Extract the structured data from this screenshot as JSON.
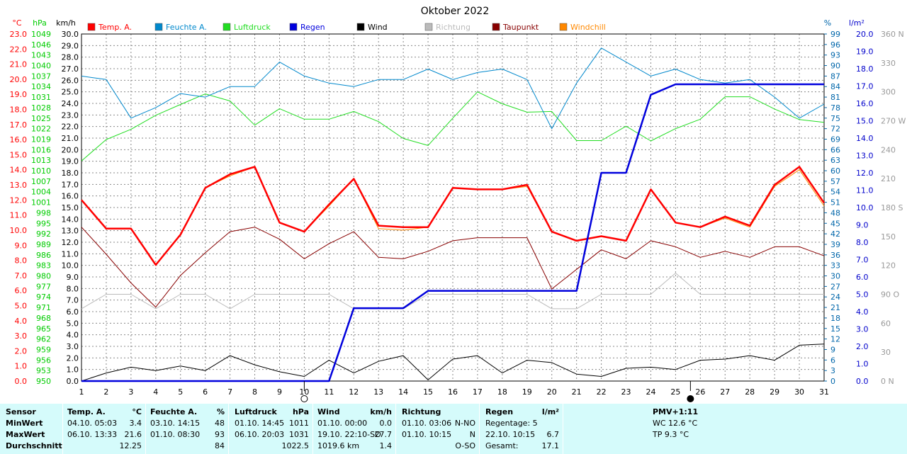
{
  "chart_data": {
    "type": "line",
    "title": "Oktober 2022",
    "x": [
      1,
      2,
      3,
      4,
      5,
      6,
      7,
      8,
      9,
      10,
      11,
      12,
      13,
      14,
      15,
      16,
      17,
      18,
      19,
      20,
      21,
      22,
      23,
      24,
      25,
      26,
      27,
      28,
      29,
      30,
      31
    ],
    "axes": {
      "temp": {
        "unit": "°C",
        "ticks": [
          "0.0",
          "1.0",
          "2.0",
          "3.0",
          "4.0",
          "5.0",
          "6.0",
          "7.0",
          "8.0",
          "9.0",
          "10.0",
          "11.0",
          "12.0",
          "13.0",
          "14.0",
          "15.0",
          "16.0",
          "17.0",
          "18.0",
          "19.0",
          "20.0",
          "21.0",
          "22.0",
          "23.0"
        ],
        "color": "#ff0000"
      },
      "pressure": {
        "unit": "hPa",
        "ticks": [
          "950",
          "953",
          "956",
          "959",
          "962",
          "965",
          "968",
          "971",
          "974",
          "977",
          "980",
          "983",
          "986",
          "989",
          "992",
          "995",
          "998",
          "1001",
          "1004",
          "1007",
          "1010",
          "1013",
          "1016",
          "1019",
          "1022",
          "1025",
          "1028",
          "1031",
          "1034",
          "1037",
          "1040",
          "1043",
          "1046",
          "1049"
        ],
        "color": "#00cc00"
      },
      "wind": {
        "unit": "km/h",
        "ticks": [
          "0.0",
          "1.0",
          "2.0",
          "3.0",
          "4.0",
          "5.0",
          "6.0",
          "7.0",
          "8.0",
          "9.0",
          "10.0",
          "11.0",
          "12.0",
          "13.0",
          "14.0",
          "15.0",
          "16.0",
          "17.0",
          "18.0",
          "19.0",
          "20.0",
          "21.0",
          "22.0",
          "23.0",
          "24.0",
          "25.0",
          "26.0",
          "27.0",
          "28.0",
          "29.0",
          "30.0"
        ],
        "color": "#000000"
      },
      "humidity": {
        "unit": "%",
        "ticks": [
          "0",
          "3",
          "6",
          "9",
          "12",
          "15",
          "18",
          "21",
          "24",
          "27",
          "30",
          "33",
          "36",
          "39",
          "42",
          "45",
          "48",
          "51",
          "54",
          "57",
          "60",
          "63",
          "66",
          "69",
          "72",
          "75",
          "78",
          "81",
          "84",
          "87",
          "90",
          "93",
          "96",
          "99"
        ],
        "color": "#0066aa"
      },
      "rain": {
        "unit": "l/m²",
        "ticks": [
          "0.0",
          "1.0",
          "2.0",
          "3.0",
          "4.0",
          "5.0",
          "6.0",
          "7.0",
          "8.0",
          "9.0",
          "10.0",
          "11.0",
          "12.0",
          "13.0",
          "14.0",
          "15.0",
          "16.0",
          "17.0",
          "18.0",
          "19.0",
          "20.0"
        ],
        "color": "#0000cc"
      },
      "direction": {
        "ticks": [
          "0 N",
          "30",
          "60",
          "90 O",
          "120",
          "150",
          "180 S",
          "210",
          "240",
          "270 W",
          "300",
          "330",
          "360 N"
        ],
        "color": "#999999"
      }
    },
    "series": [
      {
        "name": "Temp. A.",
        "axis": "temp",
        "color": "#ff0000",
        "values": [
          12.0,
          10.1,
          10.1,
          7.7,
          9.7,
          12.8,
          13.7,
          14.2,
          10.5,
          9.9,
          11.7,
          13.4,
          10.3,
          10.2,
          10.2,
          12.8,
          12.7,
          12.7,
          13.0,
          9.9,
          9.3,
          9.6,
          9.3,
          12.7,
          10.5,
          10.2,
          10.9,
          10.3,
          13.0,
          14.2,
          11.8
        ]
      },
      {
        "name": "Feuchte A.",
        "axis": "humidity",
        "color": "#0088cc",
        "values": [
          87,
          86,
          75,
          78,
          82,
          81,
          84,
          84,
          91,
          87,
          85,
          84,
          86,
          86,
          89,
          86,
          88,
          89,
          86,
          72,
          85,
          95,
          91,
          87,
          89,
          86,
          85,
          86,
          81,
          75,
          79
        ]
      },
      {
        "name": "Luftdruck",
        "axis": "pressure",
        "color": "#22dd22",
        "values": [
          1012.8,
          1018.9,
          1021.8,
          1025.8,
          1028.9,
          1031.9,
          1029.9,
          1023.0,
          1027.7,
          1024.7,
          1024.7,
          1026.9,
          1024.0,
          1019.2,
          1017.2,
          1025.0,
          1032.5,
          1029.1,
          1026.7,
          1026.9,
          1018.6,
          1018.6,
          1022.7,
          1018.5,
          1022.0,
          1024.7,
          1031.1,
          1031.1,
          1027.6,
          1024.6,
          1023.8
        ]
      },
      {
        "name": "Regen",
        "axis": "rain",
        "color": "#0000dd",
        "values": [
          0.0,
          0.0,
          0.0,
          0.0,
          0.0,
          0.0,
          0.0,
          0.0,
          0.0,
          0.0,
          0.0,
          4.2,
          4.2,
          4.2,
          5.2,
          5.2,
          5.2,
          5.2,
          5.2,
          5.2,
          5.2,
          12.0,
          12.0,
          16.5,
          17.1,
          17.1,
          17.1,
          17.1,
          17.1,
          17.1,
          17.1
        ]
      },
      {
        "name": "Wind",
        "axis": "wind",
        "color": "#000000",
        "values": [
          0.0,
          0.7,
          1.2,
          0.9,
          1.3,
          0.9,
          2.2,
          1.4,
          0.8,
          0.4,
          1.8,
          0.7,
          1.7,
          2.2,
          0.1,
          1.9,
          2.2,
          0.7,
          1.8,
          1.6,
          0.6,
          0.4,
          1.1,
          1.2,
          1.0,
          1.8,
          1.9,
          2.2,
          1.8,
          3.1,
          3.2
        ]
      },
      {
        "name": "Richtung",
        "axis": "direction",
        "color": "#bbbbbb",
        "values": [
          75,
          90,
          90,
          75,
          90,
          90,
          75,
          90,
          90,
          90,
          90,
          75,
          75,
          75,
          90,
          90,
          90,
          90,
          90,
          75,
          75,
          90,
          90,
          90,
          112,
          90,
          90,
          90,
          90,
          90,
          90
        ]
      },
      {
        "name": "Taupunkt",
        "axis": "temp",
        "color": "#880000",
        "values": [
          10.2,
          8.4,
          6.5,
          4.9,
          7.0,
          8.5,
          9.9,
          10.2,
          9.4,
          8.1,
          9.1,
          9.9,
          8.2,
          8.1,
          8.6,
          9.3,
          9.5,
          9.5,
          9.5,
          6.1,
          7.4,
          8.7,
          8.1,
          9.3,
          8.9,
          8.2,
          8.6,
          8.2,
          8.9,
          8.9,
          8.3
        ]
      },
      {
        "name": "Windchill",
        "axis": "temp",
        "color": "#ff8800",
        "values": [
          12.0,
          10.1,
          10.1,
          7.7,
          9.7,
          12.8,
          13.6,
          14.2,
          10.5,
          9.9,
          11.6,
          13.4,
          10.1,
          10.0,
          10.2,
          12.8,
          12.7,
          12.7,
          12.9,
          9.9,
          9.3,
          9.6,
          9.3,
          12.7,
          10.5,
          10.2,
          10.8,
          10.2,
          12.9,
          14.0,
          11.6
        ]
      }
    ],
    "moon_markers": [
      {
        "day": 10,
        "phase": "first-quarter"
      },
      {
        "day": 25.6,
        "phase": "new-moon"
      }
    ],
    "grid": true,
    "legend_position": "top"
  },
  "stats": {
    "sensor": {
      "title": "Sensor",
      "min": "MinWert",
      "max": "MaxWert",
      "avg": "Durchschnitt"
    },
    "temp": {
      "title": "Temp. A.",
      "unit": "°C",
      "min_dt": "04.10.  05:03",
      "min_v": "3.4",
      "max_dt": "06.10.  13:33",
      "max_v": "21.6",
      "avg_v": "12.25"
    },
    "hum": {
      "title": "Feuchte A.",
      "unit": "%",
      "min_dt": "03.10.  14:15",
      "min_v": "48",
      "max_dt": "01.10.  08:30",
      "max_v": "93",
      "avg_v": "84"
    },
    "press": {
      "title": "Luftdruck",
      "unit": "hPa",
      "min_dt": "01.10.  14:45",
      "min_v": "1011",
      "max_dt": "06.10.  20:03",
      "max_v": "1031",
      "avg_v": "1022.5"
    },
    "wind": {
      "title": "Wind",
      "unit": "km/h",
      "min_dt": "01.10.  00:00",
      "min_v": "0.0",
      "max_dt": "19.10.  22:10-SO",
      "max_v": "27.7",
      "avg_dt": "1019.6 km",
      "avg_v": "1.4"
    },
    "dir": {
      "title": "Richtung",
      "min_dt": "01.10.  03:06",
      "min_v": "N-NO",
      "max_dt": "01.10.  10:15",
      "max_v": "N",
      "avg_v": "O-SO"
    },
    "rain": {
      "title": "Regen",
      "unit": "l/m²",
      "r1": "Regentage: 5",
      "r2_dt": "22.10.  10:15",
      "r2_v": "6.7",
      "r3": "Gesamt:",
      "r3_v": "17.1"
    },
    "pmv": {
      "title": "PMV+1:11",
      "wc": "WC 12.6 °C",
      "tp": "TP 9.3 °C"
    }
  }
}
